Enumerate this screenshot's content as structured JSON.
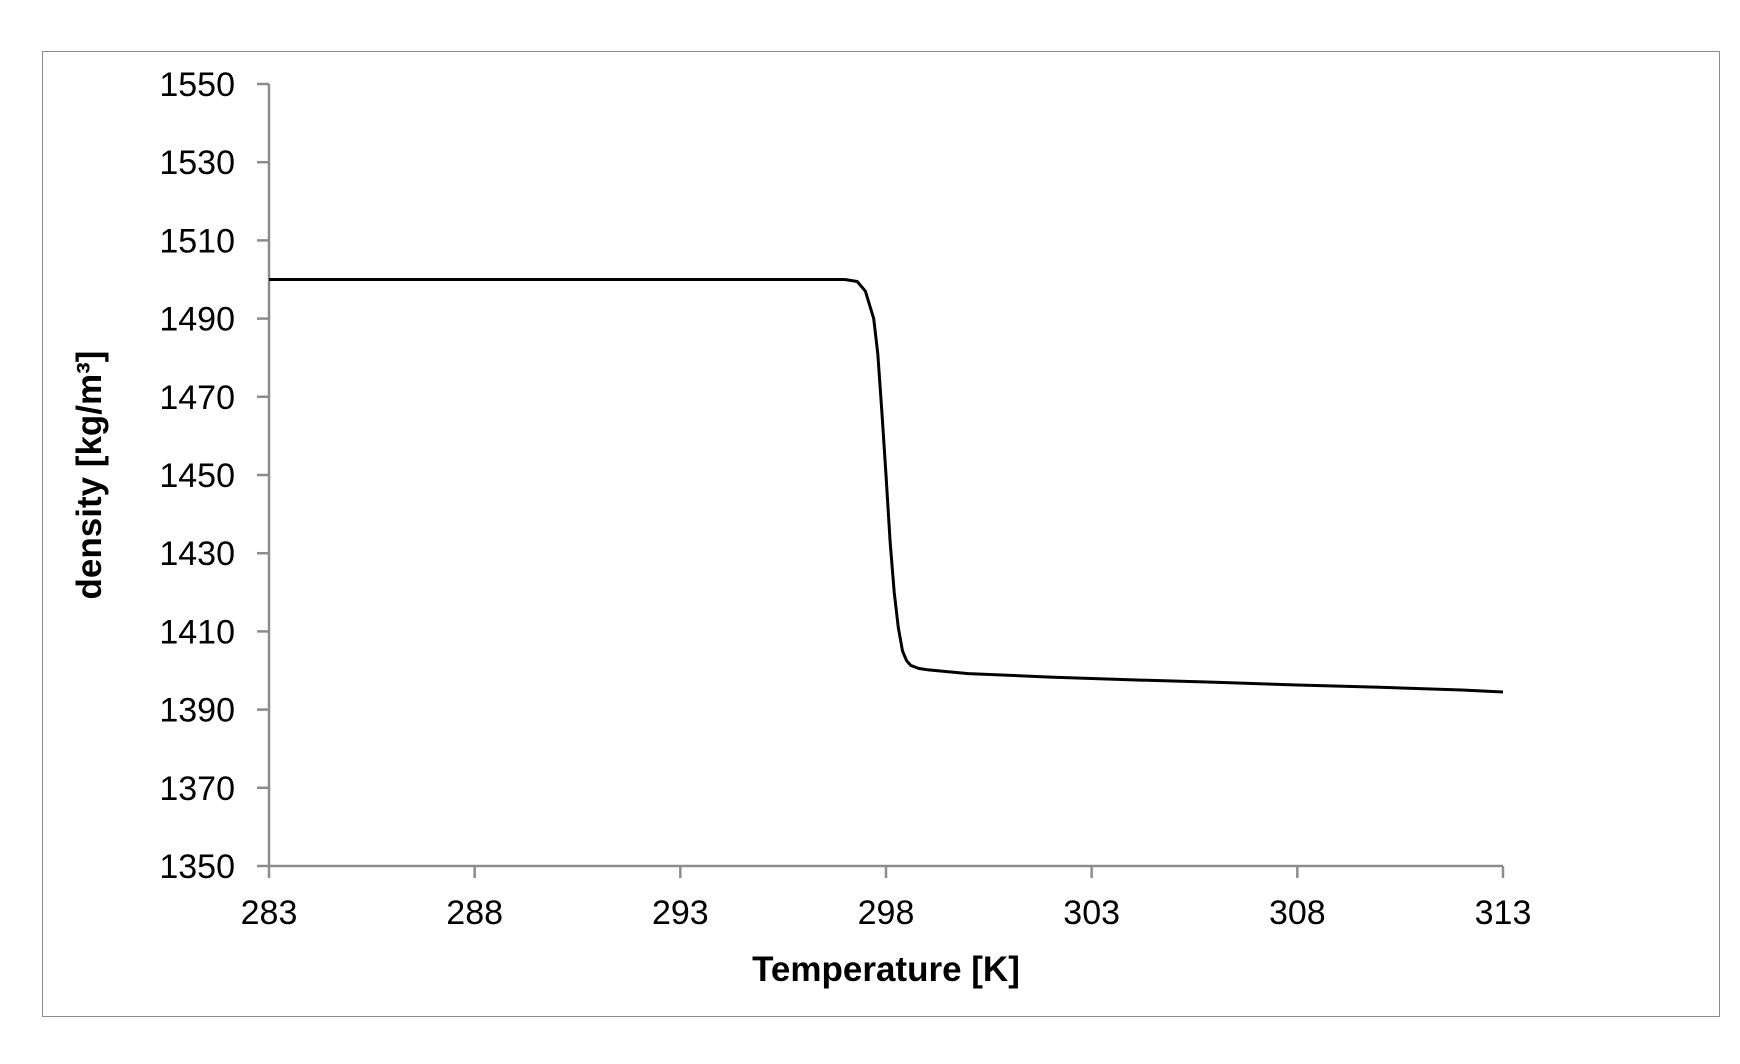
{
  "chart_data": {
    "type": "line",
    "title": "",
    "xlabel": "Temperature [K]",
    "ylabel": "density [kg/m³]",
    "xlim": [
      283,
      313
    ],
    "ylim": [
      1350,
      1550
    ],
    "x_ticks": [
      "283",
      "288",
      "293",
      "298",
      "303",
      "308",
      "313"
    ],
    "y_ticks": [
      "1350",
      "1370",
      "1390",
      "1410",
      "1430",
      "1450",
      "1470",
      "1490",
      "1510",
      "1530",
      "1550"
    ],
    "grid": false,
    "legend": "none",
    "series": [
      {
        "color": "#000000",
        "x": [
          283,
          290,
          296,
          297,
          297.3,
          297.5,
          297.7,
          297.8,
          297.9,
          298.0,
          298.1,
          298.2,
          298.3,
          298.4,
          298.5,
          298.6,
          298.8,
          299.0,
          300.0,
          302.0,
          304.0,
          306.0,
          308.0,
          310.0,
          312.0,
          313.0
        ],
        "y": [
          1500,
          1500,
          1500,
          1500,
          1499.5,
          1497,
          1490,
          1481,
          1466,
          1450,
          1433,
          1420,
          1411,
          1405,
          1402.5,
          1401.3,
          1400.5,
          1400.2,
          1399.2,
          1398.3,
          1397.6,
          1397.0,
          1396.3,
          1395.7,
          1395.0,
          1394.5
        ]
      }
    ]
  }
}
